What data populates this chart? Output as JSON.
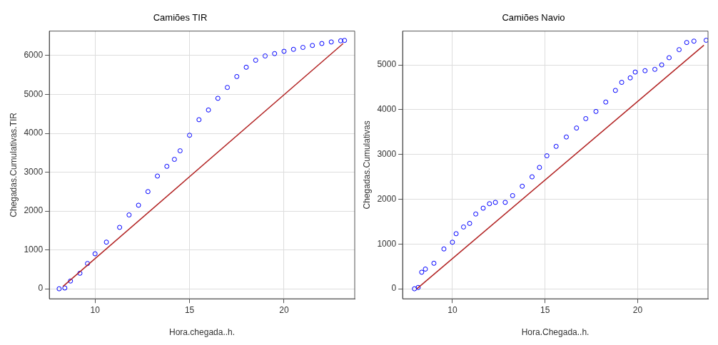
{
  "chart_data": [
    {
      "type": "scatter",
      "title": "Camiões TIR",
      "xlabel": "Hora.chegada..h.",
      "ylabel": "Chegadas.Cumulativas.TIR",
      "xlim": [
        7.58,
        23.74
      ],
      "ylim": [
        -258,
        6630
      ],
      "xticks": [
        10,
        15,
        20
      ],
      "yticks": [
        0,
        1000,
        2000,
        3000,
        4000,
        5000,
        6000
      ],
      "grid": true,
      "marker": "circle",
      "series": [
        {
          "color": "#0000ff",
          "x": [
            8.1,
            8.4,
            8.7,
            9.2,
            9.6,
            10,
            10.6,
            11.3,
            11.8,
            12.3,
            12.8,
            13.3,
            13.8,
            14.2,
            14.5,
            15,
            15.5,
            16,
            16.5,
            17,
            17.5,
            18,
            18.5,
            19,
            19.5,
            20,
            20.5,
            21,
            21.5,
            22,
            22.5,
            23,
            23.2
          ],
          "values": [
            0,
            20,
            200,
            400,
            650,
            900,
            1200,
            1580,
            1900,
            2150,
            2500,
            2900,
            3150,
            3330,
            3550,
            3950,
            4350,
            4600,
            4900,
            5180,
            5460,
            5700,
            5880,
            5990,
            6050,
            6110,
            6160,
            6210,
            6260,
            6310,
            6350,
            6380,
            6390
          ]
        },
        {
          "type": "line",
          "marker": "none",
          "color": "#b22222",
          "x": [
            8.3,
            23.13
          ],
          "values": [
            60,
            6310
          ]
        }
      ]
    },
    {
      "type": "scatter",
      "title": "Camiões Navio",
      "xlabel": "Hora.Chegada..h.",
      "ylabel": "Chegadas.Cumulativas",
      "xlim": [
        7.31,
        23.8
      ],
      "ylim": [
        -224,
        5755
      ],
      "xticks": [
        10,
        15,
        20
      ],
      "yticks": [
        0,
        1000,
        2000,
        3000,
        4000,
        5000
      ],
      "grid": true,
      "marker": "circle",
      "series": [
        {
          "color": "#0000ff",
          "x": [
            7.95,
            8.15,
            8.34,
            8.54,
            9.0,
            9.54,
            10,
            10.2,
            10.6,
            10.93,
            11.26,
            11.66,
            12.0,
            12.32,
            12.6,
            12.85,
            13.25,
            13.77,
            14.3,
            14.7,
            15.1,
            15.6,
            16.15,
            16.7,
            17.2,
            17.75,
            18.28,
            18.8,
            19.14,
            19.6,
            19.87,
            20.4,
            20.93,
            21.3,
            21.7,
            22.24,
            22.65,
            23.04,
            23.7
          ],
          "values": [
            0,
            30,
            370,
            440,
            570,
            890,
            1040,
            1230,
            1380,
            1460,
            1670,
            1800,
            1900,
            1930,
            null,
            1930,
            2080,
            2290,
            2500,
            2710,
            2970,
            3180,
            3390,
            3590,
            3800,
            3960,
            4170,
            4430,
            4610,
            4710,
            4840,
            4870,
            4900,
            5000,
            5160,
            5340,
            5500,
            5530,
            5550
          ]
        },
        {
          "type": "line",
          "marker": "none",
          "color": "#b22222",
          "x": [
            8.08,
            23.58
          ],
          "values": [
            0,
            5440
          ]
        }
      ]
    }
  ]
}
